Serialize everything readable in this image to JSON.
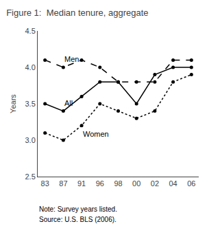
{
  "chart_data": {
    "type": "line",
    "title": "Figure 1:  Median tenure, aggregate",
    "y_label": "Years",
    "categories": [
      "83",
      "87",
      "91",
      "96",
      "98",
      "00",
      "02",
      "04",
      "06"
    ],
    "series": [
      {
        "name": "Men",
        "color": "black",
        "line_style": "dashed",
        "marker": "circle",
        "values": [
          4.1,
          4.0,
          4.1,
          4.0,
          3.8,
          3.8,
          3.8,
          4.1,
          4.1
        ]
      },
      {
        "name": "All",
        "color": "black",
        "line_style": "solid",
        "marker": "circle",
        "values": [
          3.5,
          3.4,
          3.6,
          3.8,
          3.8,
          3.5,
          3.9,
          4.0,
          4.0
        ]
      },
      {
        "name": "Women",
        "color": "black",
        "line_style": "dotted",
        "marker": "circle",
        "values": [
          3.1,
          3.0,
          3.2,
          3.5,
          3.4,
          3.3,
          3.4,
          3.8,
          3.9
        ]
      }
    ],
    "ylim": [
      2.5,
      4.5
    ],
    "yticks": [
      2.5,
      {
        "value": 3,
        "label": "3.0"
      },
      3.5,
      {
        "value": 4,
        "label": "4.0"
      },
      4.5
    ],
    "annotations": [
      "Note: Survey years listed.",
      "Source: U.S. BLS (2006)."
    ],
    "grid": false
  }
}
